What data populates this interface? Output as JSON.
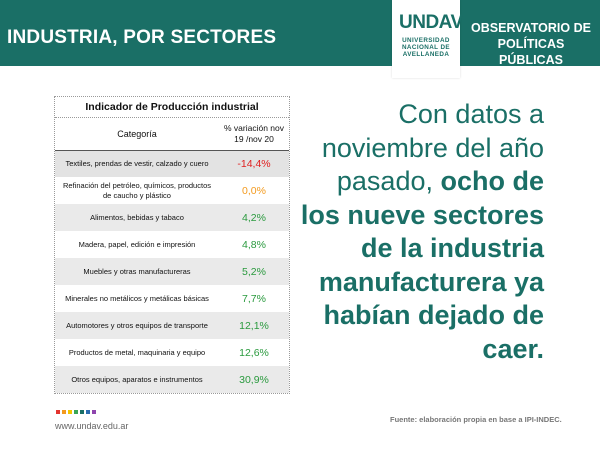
{
  "header": {
    "title": "INDUSTRIA, POR SECTORES",
    "logo_mark": "UNDAV",
    "logo_subtitle": "UNIVERSIDAD NACIONAL DE AVELLANEDA",
    "observatorio_line1": "OBSERVATORIO DE",
    "observatorio_line2": "POLÍTICAS PÚBLICAS"
  },
  "table": {
    "title": "Indicador de Producción industrial",
    "col_category": "Categoría",
    "col_value": "% variación nov 19 /nov 20",
    "rows": [
      {
        "category": "Textiles, prendas de vestir, calzado y cuero",
        "value": "-14,4%",
        "color": "#e02020"
      },
      {
        "category": "Refinación del petróleo, químicos, productos de caucho y plástico",
        "value": "0,0%",
        "color": "#f39a1e"
      },
      {
        "category": "Alimentos, bebidas y tabaco",
        "value": "4,2%",
        "color": "#2a9a3e"
      },
      {
        "category": "Madera, papel, edición e impresión",
        "value": "4,8%",
        "color": "#2a9a3e"
      },
      {
        "category": "Muebles y otras manufactureras",
        "value": "5,2%",
        "color": "#2a9a3e"
      },
      {
        "category": "Minerales no metálicos y metálicas básicas",
        "value": "7,7%",
        "color": "#2a9a3e"
      },
      {
        "category": "Automotores y otros equipos de transporte",
        "value": "12,1%",
        "color": "#2a9a3e"
      },
      {
        "category": "Productos de metal, maquinaria y equipo",
        "value": "12,6%",
        "color": "#2a9a3e"
      },
      {
        "category": "Otros equipos, aparatos e instrumentos",
        "value": "30,9%",
        "color": "#2a9a3e"
      }
    ]
  },
  "statement": {
    "normal_part": "Con datos a noviembre del año pasado, ",
    "bold_part": "ocho de los nueve sectores de la industria manufacturera ya habían dejado de caer."
  },
  "footer": {
    "website": "www.undav.edu.ar",
    "source": "Fuente: elaboración propia en base a IPI-INDEC.",
    "dot_colors": [
      "#e3342f",
      "#f39a1e",
      "#f2c500",
      "#3aa655",
      "#1a6f66",
      "#2b6cb0",
      "#8e44ad"
    ]
  },
  "colors": {
    "brand": "#1a6f66",
    "negative": "#e02020",
    "neutral": "#f39a1e",
    "positive": "#2a9a3e"
  }
}
